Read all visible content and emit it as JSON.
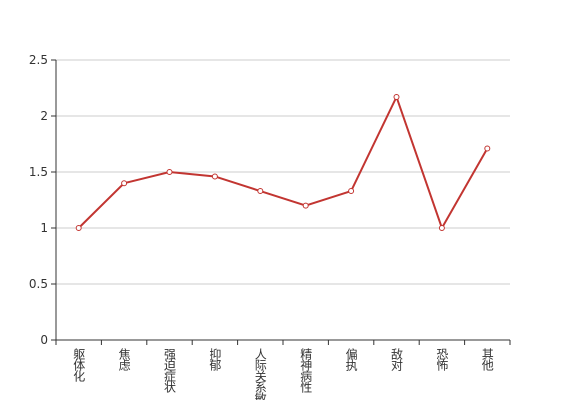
{
  "chart_data": {
    "type": "line",
    "categories": [
      "躯体化",
      "焦虑",
      "强迫症状",
      "抑郁",
      "人际关系敏感",
      "精神病性",
      "偏执",
      "敌对",
      "恐怖",
      "其他"
    ],
    "values": [
      1,
      1.4,
      1.5,
      1.46,
      1.33,
      1.2,
      1.33,
      2.17,
      1,
      1.71
    ],
    "color": "#c23531",
    "ylim": [
      0,
      2.5
    ],
    "yticks": [
      0,
      0.5,
      1,
      1.5,
      2,
      2.5
    ],
    "grid": true
  }
}
